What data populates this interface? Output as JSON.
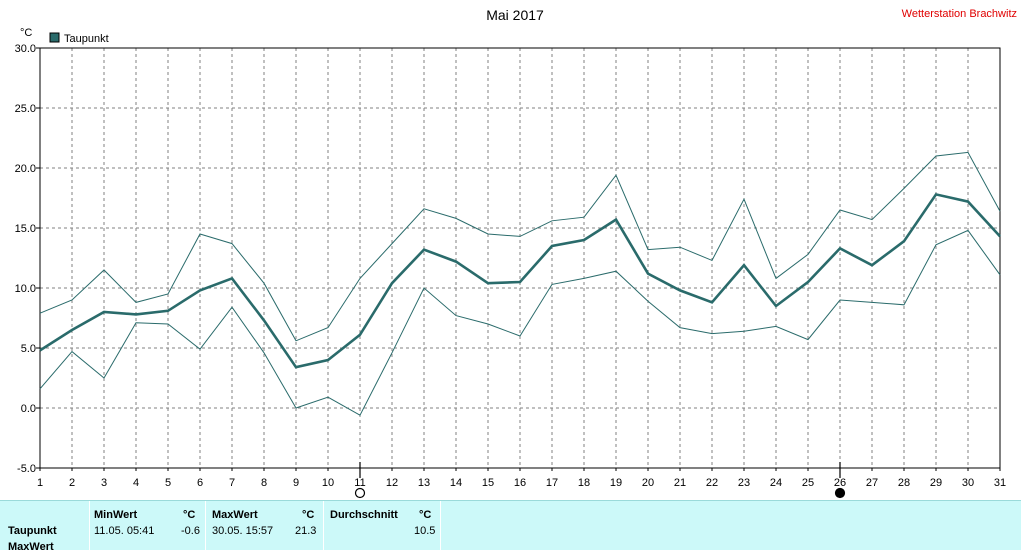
{
  "title": "Mai 2017",
  "station": "Wetterstation Brachwitz",
  "unit": "°C",
  "legend": "Taupunkt",
  "colors": {
    "series": "#2a6b6b",
    "thin": "#2a6b6b",
    "grid": "#808080",
    "station": "#e00000",
    "panel": "#ccf9f9"
  },
  "chart_data": {
    "type": "line",
    "title": "Mai 2017",
    "ylabel": "°C",
    "xlabel": "",
    "ylim": [
      -5,
      30
    ],
    "y_ticks": [
      "-5.0",
      "0.0",
      "5.0",
      "10.0",
      "15.0",
      "20.0",
      "25.0",
      "30.0"
    ],
    "x": [
      1,
      2,
      3,
      4,
      5,
      6,
      7,
      8,
      9,
      10,
      11,
      12,
      13,
      14,
      15,
      16,
      17,
      18,
      19,
      20,
      21,
      22,
      23,
      24,
      25,
      26,
      27,
      28,
      29,
      30,
      31
    ],
    "series": [
      {
        "name": "Taupunkt",
        "values": [
          4.8,
          6.5,
          8.0,
          7.8,
          8.1,
          9.8,
          10.8,
          7.3,
          3.4,
          4.0,
          6.1,
          10.4,
          13.2,
          12.2,
          10.4,
          10.5,
          13.5,
          14.0,
          15.7,
          11.2,
          9.8,
          8.8,
          11.9,
          8.5,
          10.5,
          13.3,
          11.9,
          13.9,
          17.8,
          17.2,
          14.3
        ]
      },
      {
        "values": [
          7.9,
          9.0,
          11.5,
          8.8,
          9.5,
          14.5,
          13.7,
          10.4,
          5.6,
          6.7,
          10.8,
          13.7,
          16.6,
          15.8,
          14.5,
          14.3,
          15.6,
          15.9,
          19.4,
          13.2,
          13.4,
          12.3,
          17.4,
          10.8,
          12.8,
          16.5,
          15.7,
          18.3,
          21.0,
          21.3,
          16.4
        ]
      },
      {
        "values": [
          1.6,
          4.7,
          2.5,
          7.1,
          7.0,
          4.9,
          8.4,
          4.6,
          0.0,
          0.9,
          -0.6,
          4.6,
          10.0,
          7.7,
          7.0,
          6.0,
          10.3,
          10.8,
          11.4,
          8.9,
          6.7,
          6.2,
          6.4,
          6.8,
          5.7,
          9.0,
          8.8,
          8.6,
          13.6,
          14.8,
          11.1
        ]
      }
    ],
    "grid": true,
    "legend_position": "top-left",
    "markers": [
      {
        "day": 11,
        "symbol": "full-moon"
      },
      {
        "day": 26,
        "symbol": "new-moon"
      }
    ]
  },
  "stats": {
    "headers": {
      "min": "MinWert",
      "max": "MaxWert",
      "avg": "Durchschnitt",
      "unit": "°C"
    },
    "rows": [
      {
        "label": "Taupunkt",
        "min_time": "11.05.  05:41",
        "min_value": "-0.6",
        "max_time": "30.05.  15:57",
        "max_value": "21.3",
        "avg_value": "10.5"
      },
      {
        "label": "MaxWert"
      }
    ]
  }
}
